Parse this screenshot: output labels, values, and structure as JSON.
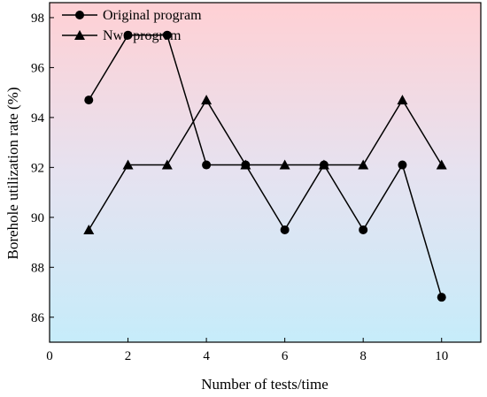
{
  "chart_data": {
    "type": "line",
    "xlabel": "Number of tests/time",
    "ylabel": "Borehole utilization rate (%)",
    "xlim": [
      0,
      11
    ],
    "ylim": [
      85,
      98.6
    ],
    "xticks": [
      0,
      2,
      4,
      6,
      8,
      10
    ],
    "yticks": [
      86,
      88,
      90,
      92,
      94,
      96,
      98
    ],
    "grid": false,
    "legend_position": "top-left",
    "background": "vertical gradient from pink (top) to light blue (bottom)",
    "colors": {
      "top": "#ffd0d4",
      "bottom": "#c6ecfa",
      "line": "#000000"
    },
    "x": [
      1,
      2,
      3,
      4,
      5,
      6,
      7,
      8,
      9,
      10
    ],
    "series": [
      {
        "name": "Original program",
        "marker": "circle",
        "values": [
          94.7,
          97.3,
          97.3,
          92.1,
          92.1,
          89.5,
          92.1,
          89.5,
          92.1,
          86.8
        ]
      },
      {
        "name": "Nwe program",
        "marker": "triangle",
        "values": [
          89.5,
          92.1,
          92.1,
          94.7,
          92.1,
          92.1,
          92.1,
          92.1,
          94.7,
          92.1
        ]
      }
    ]
  }
}
